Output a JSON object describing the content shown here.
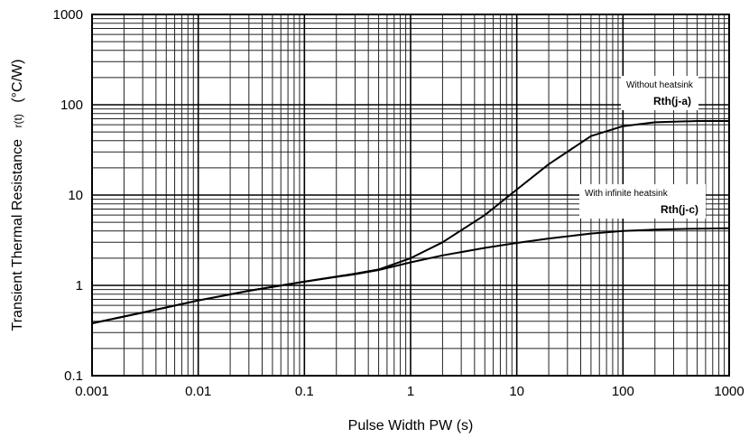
{
  "chart_data": {
    "type": "line",
    "xlabel": "Pulse Width  PW  (s)",
    "ylabel": "Transient Thermal Resistance",
    "ylabel_symbol": "r(t)",
    "ylabel_unit": "(°C/W)",
    "x_scale": "log",
    "y_scale": "log",
    "xlim": [
      0.001,
      1000
    ],
    "ylim": [
      0.1,
      1000
    ],
    "grid": true,
    "x_ticks": [
      "0.001",
      "0.01",
      "0.1",
      "1",
      "10",
      "100",
      "1000"
    ],
    "y_ticks": [
      "0.1",
      "1",
      "10",
      "100",
      "1000"
    ],
    "series": [
      {
        "name": "Without heatsink",
        "symbol": "Rth(j-a)",
        "x": [
          0.001,
          0.003,
          0.01,
          0.03,
          0.1,
          0.3,
          0.5,
          1,
          2,
          5,
          10,
          20,
          50,
          100,
          200,
          500,
          1000
        ],
        "y": [
          0.38,
          0.5,
          0.68,
          0.87,
          1.1,
          1.35,
          1.5,
          2.0,
          3.0,
          6.0,
          11.5,
          22,
          45,
          58,
          64,
          66,
          66
        ]
      },
      {
        "name": "With infinite heatsink",
        "symbol": "Rth(j-c)",
        "x": [
          0.001,
          0.003,
          0.01,
          0.03,
          0.1,
          0.3,
          0.5,
          1,
          2,
          5,
          10,
          20,
          50,
          100,
          200,
          500,
          1000
        ],
        "y": [
          0.38,
          0.5,
          0.68,
          0.87,
          1.1,
          1.33,
          1.48,
          1.8,
          2.15,
          2.6,
          2.95,
          3.3,
          3.75,
          4.0,
          4.15,
          4.25,
          4.3
        ]
      }
    ]
  }
}
